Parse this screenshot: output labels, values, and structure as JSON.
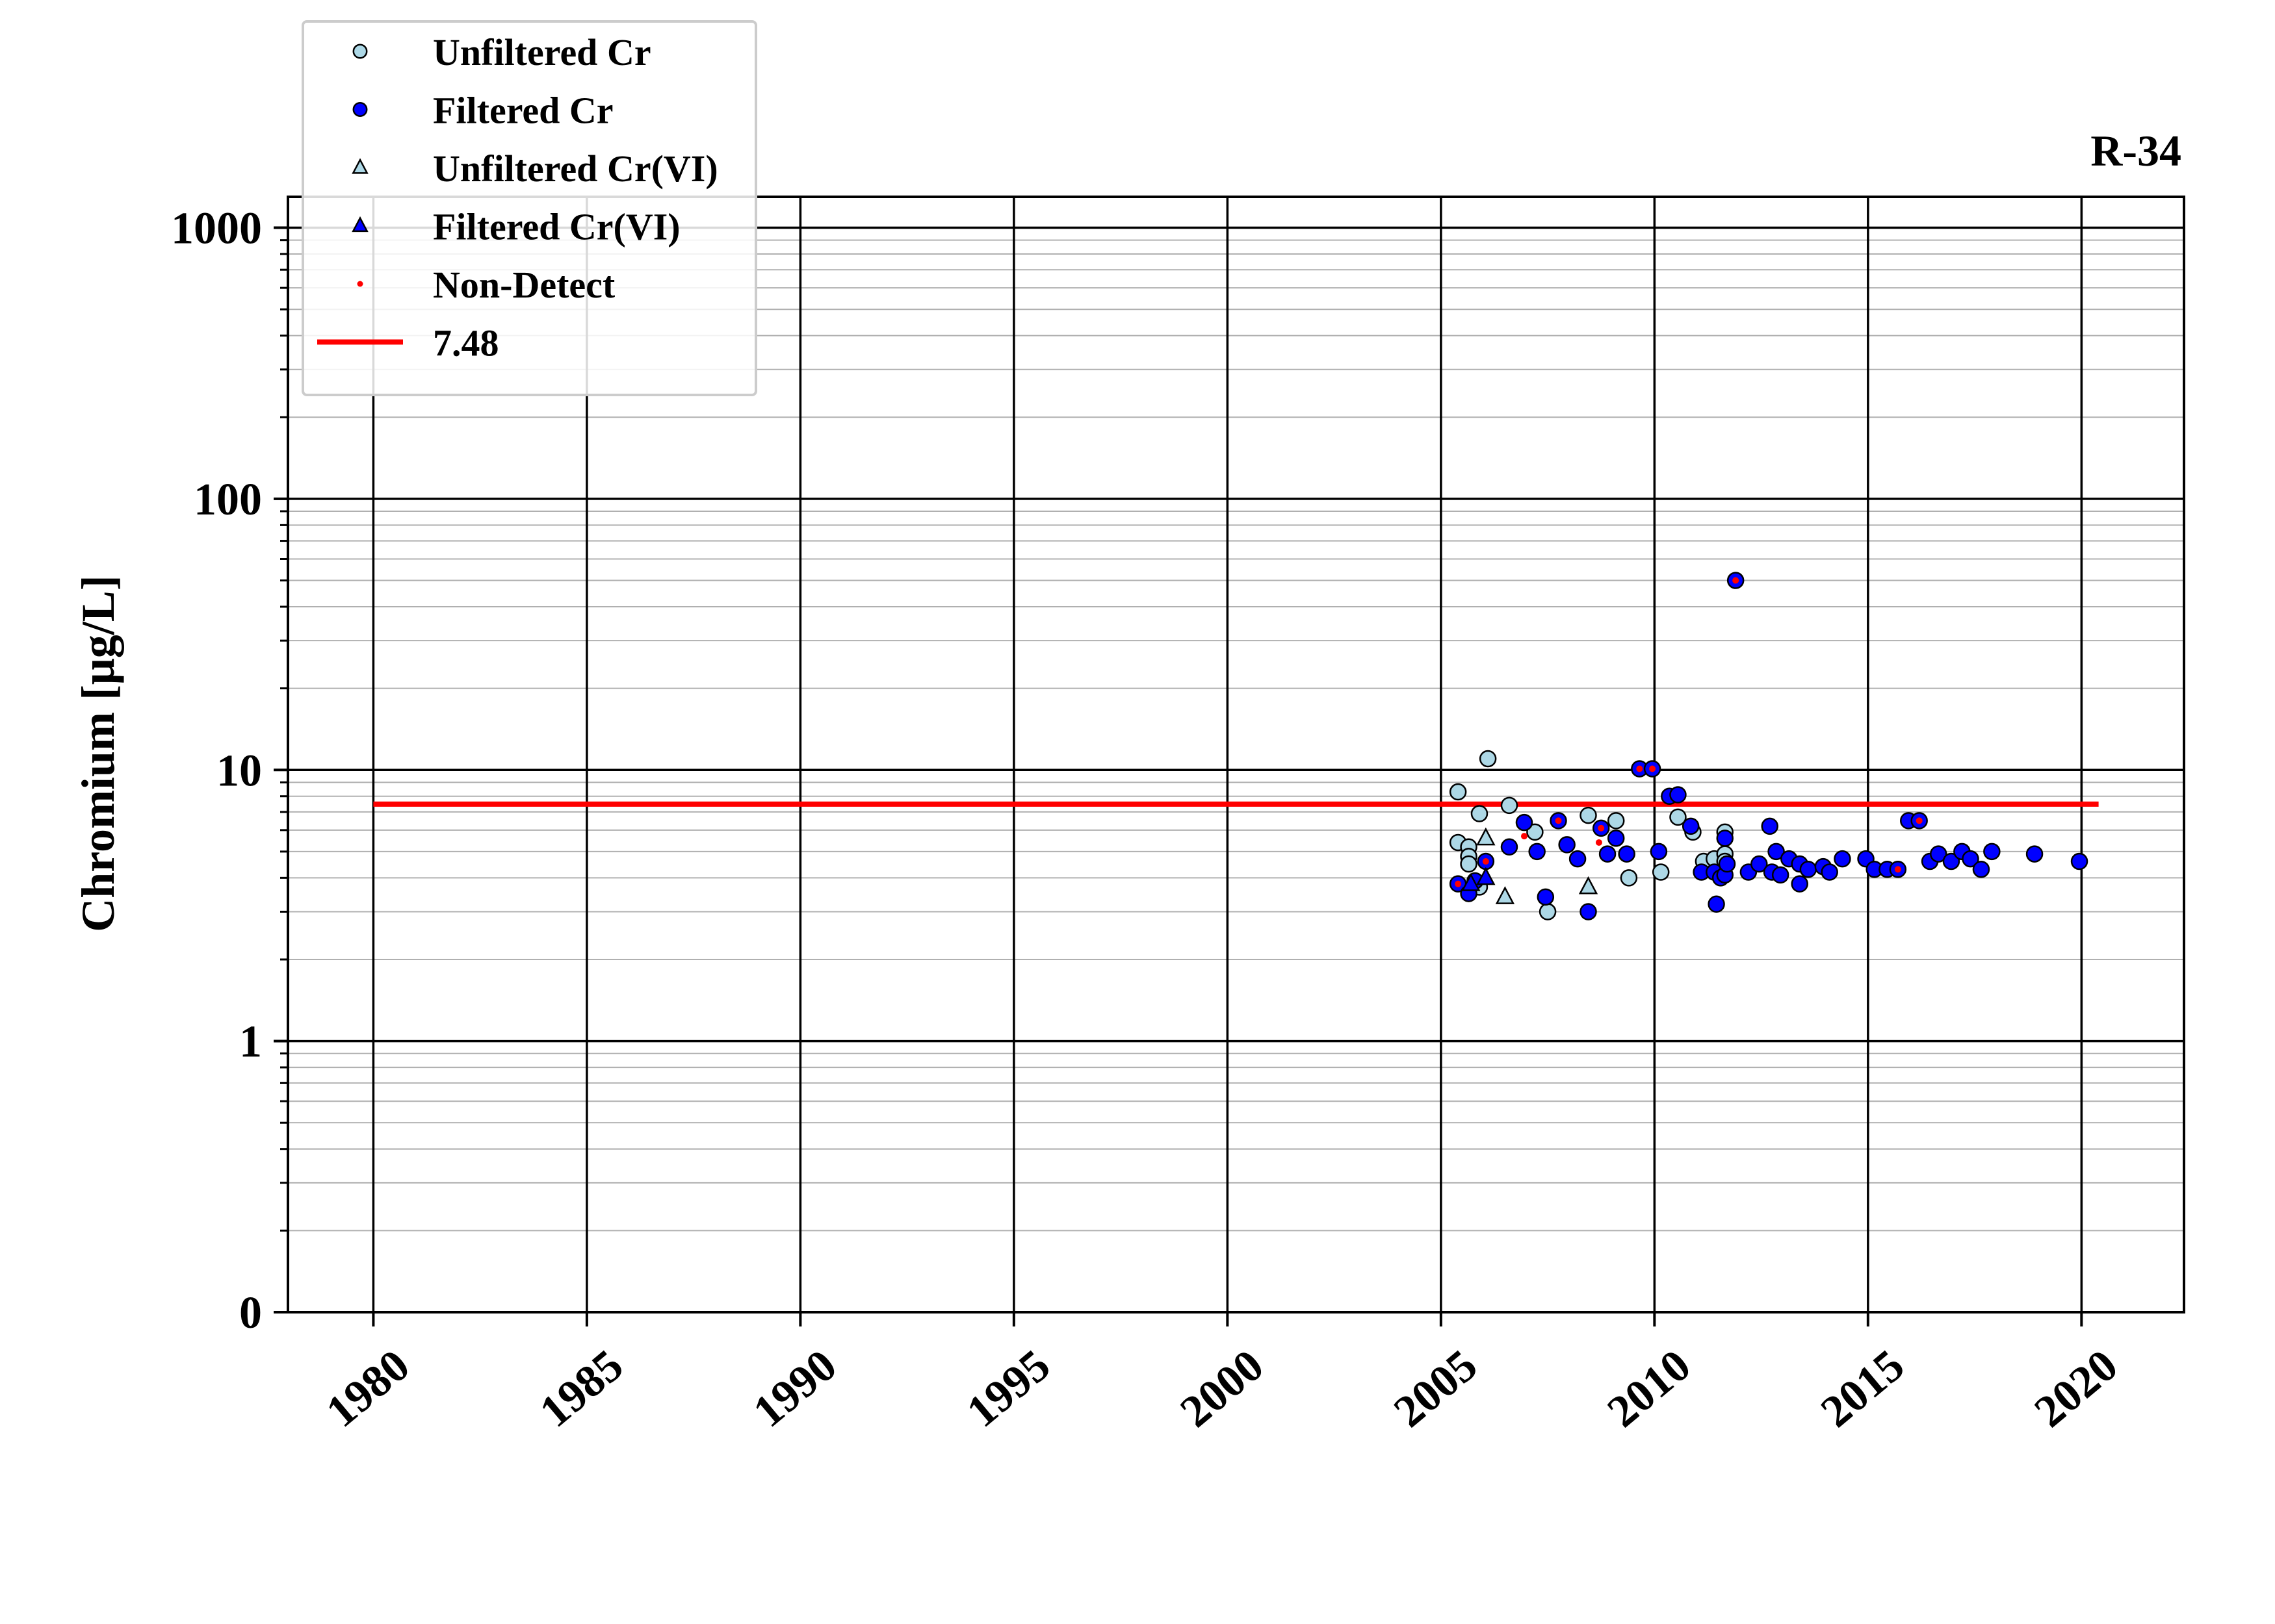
{
  "chart_data": {
    "type": "scatter",
    "title": "R-34",
    "ylabel": "Chromium [μg/L]",
    "xlabel": "",
    "xlim": [
      1978,
      2022.4
    ],
    "ylim": [
      0.1,
      1300
    ],
    "yscale": "log",
    "grid": true,
    "legend_position": "top-left",
    "x_ticks": [
      1980,
      1985,
      1990,
      1995,
      2000,
      2005,
      2010,
      2015,
      2020
    ],
    "y_ticks": [
      {
        "value": 0.1,
        "label": "0"
      },
      {
        "value": 1,
        "label": "1"
      },
      {
        "value": 10,
        "label": "10"
      },
      {
        "value": 100,
        "label": "100"
      },
      {
        "value": 1000,
        "label": "1000"
      }
    ],
    "reference_line": {
      "label": "7.48",
      "value": 7.48,
      "x_range": [
        1980,
        2020.4
      ],
      "color": "#ff0000"
    },
    "legend": [
      {
        "label": "Unfiltered Cr",
        "marker": "circle",
        "color": "#add8e6"
      },
      {
        "label": "Filtered Cr",
        "marker": "circle",
        "color": "#0000ff"
      },
      {
        "label": "Unfiltered Cr(VI)",
        "marker": "triangle",
        "color": "#add8e6"
      },
      {
        "label": "Filtered Cr(VI)",
        "marker": "triangle",
        "color": "#0000ff"
      },
      {
        "label": "Non-Detect",
        "marker": "dot",
        "color": "#ff0000"
      },
      {
        "label": "7.48",
        "marker": "line",
        "color": "#ff0000"
      }
    ],
    "series": [
      {
        "name": "Unfiltered Cr",
        "marker": "circle",
        "color": "#add8e6",
        "points": [
          [
            2005.4,
            8.3
          ],
          [
            2005.4,
            5.4
          ],
          [
            2005.65,
            5.2
          ],
          [
            2005.65,
            4.8
          ],
          [
            2005.65,
            4.5
          ],
          [
            2005.9,
            6.9
          ],
          [
            2005.9,
            3.7
          ],
          [
            2006.1,
            11.0
          ],
          [
            2006.6,
            7.4
          ],
          [
            2007.2,
            5.9
          ],
          [
            2007.5,
            3.0
          ],
          [
            2008.45,
            6.8
          ],
          [
            2009.1,
            6.5
          ],
          [
            2009.4,
            4.0
          ],
          [
            2010.15,
            4.2
          ],
          [
            2010.55,
            6.7
          ],
          [
            2010.9,
            5.9
          ],
          [
            2011.15,
            4.6
          ],
          [
            2011.4,
            4.7
          ],
          [
            2011.65,
            5.9
          ],
          [
            2011.65,
            4.9
          ],
          [
            2011.65,
            4.6
          ]
        ]
      },
      {
        "name": "Filtered Cr",
        "marker": "circle",
        "color": "#0000ff",
        "points": [
          [
            2005.4,
            3.8
          ],
          [
            2005.65,
            3.5
          ],
          [
            2005.8,
            3.9
          ],
          [
            2006.05,
            4.6
          ],
          [
            2006.6,
            5.2
          ],
          [
            2006.95,
            6.4
          ],
          [
            2007.25,
            5.0
          ],
          [
            2007.45,
            3.4
          ],
          [
            2007.75,
            6.5
          ],
          [
            2007.95,
            5.3
          ],
          [
            2008.2,
            4.7
          ],
          [
            2008.45,
            3.0
          ],
          [
            2008.75,
            6.1
          ],
          [
            2008.9,
            4.9
          ],
          [
            2009.1,
            5.6
          ],
          [
            2009.35,
            4.9
          ],
          [
            2009.65,
            10.1
          ],
          [
            2009.95,
            10.1
          ],
          [
            2010.1,
            5.0
          ],
          [
            2010.35,
            8.0
          ],
          [
            2010.55,
            8.1
          ],
          [
            2010.85,
            6.2
          ],
          [
            2011.1,
            4.2
          ],
          [
            2011.4,
            4.2
          ],
          [
            2011.45,
            3.2
          ],
          [
            2011.55,
            4.0
          ],
          [
            2011.65,
            5.6
          ],
          [
            2011.65,
            4.1
          ],
          [
            2011.7,
            4.5
          ],
          [
            2011.9,
            50.0
          ],
          [
            2012.2,
            4.2
          ],
          [
            2012.45,
            4.5
          ],
          [
            2012.7,
            6.2
          ],
          [
            2012.75,
            4.2
          ],
          [
            2012.85,
            5.0
          ],
          [
            2012.95,
            4.1
          ],
          [
            2013.15,
            4.7
          ],
          [
            2013.4,
            3.8
          ],
          [
            2013.4,
            4.5
          ],
          [
            2013.6,
            4.3
          ],
          [
            2013.95,
            4.4
          ],
          [
            2014.1,
            4.2
          ],
          [
            2014.4,
            4.7
          ],
          [
            2014.95,
            4.7
          ],
          [
            2015.15,
            4.3
          ],
          [
            2015.45,
            4.3
          ],
          [
            2015.7,
            4.3
          ],
          [
            2015.95,
            6.5
          ],
          [
            2016.2,
            6.5
          ],
          [
            2016.45,
            4.6
          ],
          [
            2016.65,
            4.9
          ],
          [
            2016.95,
            4.6
          ],
          [
            2017.2,
            5.0
          ],
          [
            2017.4,
            4.7
          ],
          [
            2017.65,
            4.3
          ],
          [
            2017.9,
            5.0
          ],
          [
            2018.9,
            4.9
          ],
          [
            2019.95,
            4.6
          ]
        ]
      },
      {
        "name": "Unfiltered Cr(VI)",
        "marker": "triangle",
        "color": "#add8e6",
        "points": [
          [
            2006.05,
            5.6
          ],
          [
            2006.5,
            3.4
          ],
          [
            2008.45,
            3.7
          ]
        ]
      },
      {
        "name": "Filtered Cr(VI)",
        "marker": "triangle",
        "color": "#0000ff",
        "points": [
          [
            2005.7,
            3.8
          ],
          [
            2006.05,
            4.0
          ]
        ]
      },
      {
        "name": "Non-Detect",
        "marker": "dot",
        "color": "#ff0000",
        "points": [
          [
            2005.4,
            3.8
          ],
          [
            2006.05,
            4.6
          ],
          [
            2006.95,
            5.7
          ],
          [
            2007.75,
            6.5
          ],
          [
            2008.7,
            5.4
          ],
          [
            2008.75,
            6.1
          ],
          [
            2009.65,
            10.1
          ],
          [
            2009.95,
            10.1
          ],
          [
            2011.9,
            50.0
          ],
          [
            2015.7,
            4.3
          ],
          [
            2016.2,
            6.5
          ]
        ]
      }
    ]
  }
}
